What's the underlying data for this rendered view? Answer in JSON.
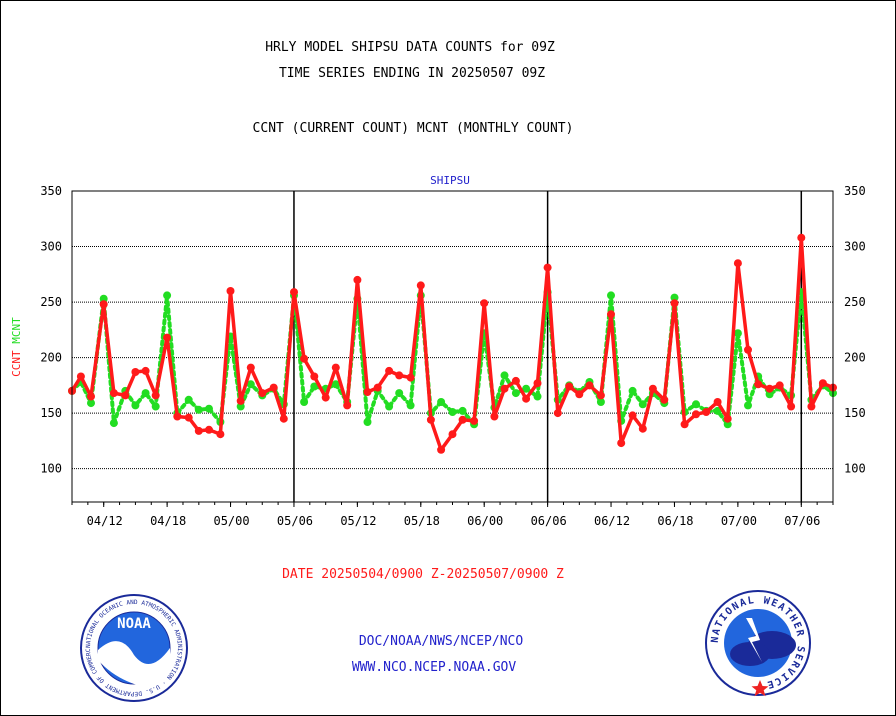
{
  "header": {
    "title_line1": "HRLY MODEL SHIPSU DATA COUNTS for 09Z",
    "title_line2": "TIME SERIES ENDING IN 20250507 09Z",
    "subtitle": "CCNT (CURRENT COUNT) MCNT (MONTHLY COUNT)"
  },
  "footer": {
    "date_range": "DATE 20250504/0900 Z-20250507/0900 Z",
    "agency_path": "DOC/NOAA/NWS/NCEP/NCO",
    "website": "WWW.NCO.NCEP.NOAA.GOV"
  },
  "logos": {
    "left": "NOAA",
    "left_ring_text": "NATIONAL OCEANIC AND ATMOSPHERIC ADMINISTRATION · U.S. DEPARTMENT OF COMMERCE ·",
    "right_ring_text": "NATIONAL WEATHER SERVICE"
  },
  "colors": {
    "ccnt": "#ff1a1a",
    "mcnt": "#22dd22",
    "plot_title": "#2222cc",
    "footer_links": "#2222cc",
    "date_range": "#ff1a1a"
  },
  "chart_data": {
    "type": "line",
    "title": "SHIPSU",
    "ylabel_parts": [
      {
        "text": "CCNT",
        "color": "#ff1a1a"
      },
      {
        "text": "MCNT",
        "color": "#22dd22"
      }
    ],
    "ylim": [
      70,
      350
    ],
    "yticks": [
      100,
      150,
      200,
      250,
      300,
      350
    ],
    "xlim": [
      0,
      60
    ],
    "xticks": [
      {
        "x": 2.5,
        "label": "04/12"
      },
      {
        "x": 7.5,
        "label": "04/18"
      },
      {
        "x": 12.5,
        "label": "05/00"
      },
      {
        "x": 17.5,
        "label": "05/06"
      },
      {
        "x": 22.5,
        "label": "05/12"
      },
      {
        "x": 27.5,
        "label": "05/18"
      },
      {
        "x": 32.5,
        "label": "06/00"
      },
      {
        "x": 37.5,
        "label": "06/06"
      },
      {
        "x": 42.5,
        "label": "06/12"
      },
      {
        "x": 47.5,
        "label": "06/18"
      },
      {
        "x": 52.5,
        "label": "07/00"
      },
      {
        "x": 57.5,
        "label": "07/06"
      }
    ],
    "day_boundaries": [
      17.5,
      37.5,
      57.5
    ],
    "grid": true,
    "series": [
      {
        "name": "CCNT",
        "values": [
          [
            0,
            170
          ],
          [
            0.7,
            183
          ],
          [
            1.5,
            165
          ],
          [
            2.5,
            248
          ],
          [
            3.3,
            168
          ],
          [
            4.2,
            166
          ],
          [
            5,
            187
          ],
          [
            5.8,
            188
          ],
          [
            6.6,
            166
          ],
          [
            7.5,
            218
          ],
          [
            8.3,
            147
          ],
          [
            9.2,
            146
          ],
          [
            10,
            134
          ],
          [
            10.8,
            135
          ],
          [
            11.7,
            131
          ],
          [
            12.5,
            260
          ],
          [
            13.3,
            161
          ],
          [
            14.1,
            191
          ],
          [
            15,
            168
          ],
          [
            15.9,
            173
          ],
          [
            16.7,
            145
          ],
          [
            17.5,
            259
          ],
          [
            18.3,
            199
          ],
          [
            19.1,
            183
          ],
          [
            20,
            164
          ],
          [
            20.8,
            191
          ],
          [
            21.7,
            157
          ],
          [
            22.5,
            270
          ],
          [
            23.3,
            169
          ],
          [
            24.1,
            173
          ],
          [
            25,
            188
          ],
          [
            25.8,
            184
          ],
          [
            26.7,
            182
          ],
          [
            27.5,
            265
          ],
          [
            28.3,
            144
          ],
          [
            29.1,
            117
          ],
          [
            30,
            131
          ],
          [
            30.8,
            144
          ],
          [
            31.7,
            143
          ],
          [
            32.5,
            249
          ],
          [
            33.3,
            147
          ],
          [
            34.1,
            172
          ],
          [
            35,
            179
          ],
          [
            35.8,
            163
          ],
          [
            36.7,
            177
          ],
          [
            37.5,
            281
          ],
          [
            38.3,
            150
          ],
          [
            39.2,
            174
          ],
          [
            40,
            167
          ],
          [
            40.8,
            175
          ],
          [
            41.7,
            166
          ],
          [
            42.5,
            239
          ],
          [
            43.3,
            123
          ],
          [
            44.2,
            148
          ],
          [
            45,
            136
          ],
          [
            45.8,
            172
          ],
          [
            46.7,
            162
          ],
          [
            47.5,
            249
          ],
          [
            48.3,
            140
          ],
          [
            49.2,
            149
          ],
          [
            50,
            151
          ],
          [
            50.9,
            160
          ],
          [
            51.7,
            145
          ],
          [
            52.5,
            285
          ],
          [
            53.3,
            207
          ],
          [
            54.1,
            176
          ],
          [
            55,
            172
          ],
          [
            55.8,
            175
          ],
          [
            56.7,
            156
          ],
          [
            57.5,
            308
          ],
          [
            58.3,
            156
          ],
          [
            59.2,
            177
          ],
          [
            60,
            173
          ]
        ]
      },
      {
        "name": "MCNT",
        "values": [
          [
            0,
            170
          ],
          [
            0.7,
            178
          ],
          [
            1.5,
            159
          ],
          [
            2.5,
            253
          ],
          [
            3.3,
            141
          ],
          [
            4.2,
            170
          ],
          [
            5,
            157
          ],
          [
            5.8,
            168
          ],
          [
            6.6,
            156
          ],
          [
            7.5,
            256
          ],
          [
            8.3,
            150
          ],
          [
            9.2,
            162
          ],
          [
            10,
            153
          ],
          [
            10.8,
            154
          ],
          [
            11.7,
            142
          ],
          [
            12.5,
            219
          ],
          [
            13.3,
            156
          ],
          [
            14.1,
            176
          ],
          [
            15,
            166
          ],
          [
            15.9,
            172
          ],
          [
            16.7,
            158
          ],
          [
            17.5,
            256
          ],
          [
            18.3,
            160
          ],
          [
            19.1,
            174
          ],
          [
            20,
            172
          ],
          [
            20.8,
            176
          ],
          [
            21.7,
            160
          ],
          [
            22.5,
            253
          ],
          [
            23.3,
            142
          ],
          [
            24.1,
            170
          ],
          [
            25,
            156
          ],
          [
            25.8,
            168
          ],
          [
            26.7,
            157
          ],
          [
            27.5,
            256
          ],
          [
            28.3,
            150
          ],
          [
            29.1,
            160
          ],
          [
            30,
            151
          ],
          [
            30.8,
            152
          ],
          [
            31.7,
            140
          ],
          [
            32.5,
            222
          ],
          [
            33.3,
            155
          ],
          [
            34.1,
            184
          ],
          [
            35,
            168
          ],
          [
            35.8,
            172
          ],
          [
            36.7,
            165
          ],
          [
            37.5,
            259
          ],
          [
            38.3,
            162
          ],
          [
            39.2,
            175
          ],
          [
            40,
            169
          ],
          [
            40.8,
            178
          ],
          [
            41.7,
            160
          ],
          [
            42.5,
            256
          ],
          [
            43.3,
            143
          ],
          [
            44.2,
            170
          ],
          [
            45,
            158
          ],
          [
            45.8,
            168
          ],
          [
            46.7,
            159
          ],
          [
            47.5,
            254
          ],
          [
            48.3,
            151
          ],
          [
            49.2,
            158
          ],
          [
            50,
            152
          ],
          [
            50.9,
            152
          ],
          [
            51.7,
            140
          ],
          [
            52.5,
            222
          ],
          [
            53.3,
            157
          ],
          [
            54.1,
            183
          ],
          [
            55,
            167
          ],
          [
            55.8,
            173
          ],
          [
            56.7,
            166
          ],
          [
            57.5,
            259
          ],
          [
            58.3,
            162
          ],
          [
            59.2,
            175
          ],
          [
            60,
            168
          ]
        ]
      }
    ]
  }
}
